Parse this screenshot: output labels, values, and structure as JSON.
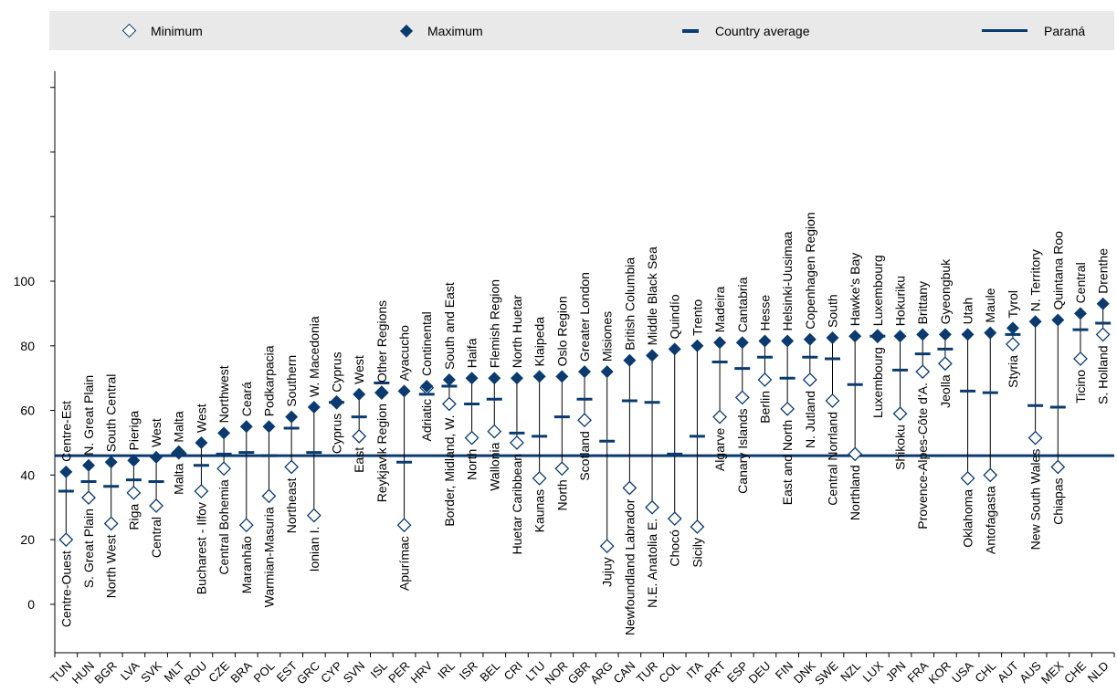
{
  "legend": {
    "min_label": "Minimum",
    "max_label": "Maximum",
    "avg_label": "Country average",
    "ref_label": "Paraná"
  },
  "colors": {
    "series": "#0b3b6e",
    "legend_bg": "#e9e9e9"
  },
  "chart_data": {
    "type": "scatter",
    "ylim": [
      -15,
      165
    ],
    "ticks": [
      0,
      20,
      40,
      60,
      80,
      100
    ],
    "reference": {
      "name": "Paraná",
      "value": 46
    },
    "countries": [
      {
        "code": "TUN",
        "min": 20,
        "max": 41,
        "avg": 35,
        "minName": "Centre-Ouest",
        "maxName": "Centre-Est"
      },
      {
        "code": "HUN",
        "min": 33,
        "max": 43,
        "avg": 38,
        "minName": "S. Great Plain",
        "maxName": "N. Great Plain"
      },
      {
        "code": "BGR",
        "min": 25,
        "max": 44,
        "avg": 36.5,
        "minName": "North West",
        "maxName": "South Central"
      },
      {
        "code": "LVA",
        "min": 34.5,
        "max": 44.5,
        "avg": 38.5,
        "minName": "Riga",
        "maxName": "Pieriga"
      },
      {
        "code": "SVK",
        "min": 30.5,
        "max": 45.5,
        "avg": 38,
        "minName": "Central",
        "maxName": "West"
      },
      {
        "code": "MLT",
        "min": 47,
        "max": 47,
        "avg": 46.5,
        "minName": "Malta",
        "maxName": "Malta"
      },
      {
        "code": "ROU",
        "min": 35,
        "max": 50,
        "avg": 43,
        "minName": "Bucharest - Ilfov",
        "maxName": "West"
      },
      {
        "code": "CZE",
        "min": 42,
        "max": 53,
        "avg": 46.5,
        "minName": "Central Bohemia",
        "maxName": "Northwest"
      },
      {
        "code": "BRA",
        "min": 24.5,
        "max": 55,
        "avg": 47,
        "minName": "Maranhão",
        "maxName": "Ceará"
      },
      {
        "code": "POL",
        "min": 33.5,
        "max": 55,
        "avg": 46,
        "minName": "Warmian-Masuria",
        "maxName": "Podkarpacia"
      },
      {
        "code": "EST",
        "min": 42.5,
        "max": 58,
        "avg": 54.5,
        "minName": "Northeast",
        "maxName": "Southern"
      },
      {
        "code": "GRC",
        "min": 27.5,
        "max": 61,
        "avg": 47,
        "minName": "Ionian I.",
        "maxName": "W. Macedonia"
      },
      {
        "code": "CYP",
        "min": 62.5,
        "max": 62.5,
        "avg": 62.5,
        "minName": "Cyprus",
        "maxName": "Cyprus"
      },
      {
        "code": "SVN",
        "min": 52,
        "max": 65,
        "avg": 58,
        "minName": "East",
        "maxName": "West"
      },
      {
        "code": "ISL",
        "min": 65.5,
        "max": 65.5,
        "avg": 68.5,
        "minName": "Reykjavik Region",
        "maxName": "Other Regions"
      },
      {
        "code": "PER",
        "min": 24.5,
        "max": 66,
        "avg": 44,
        "minName": "Apurímac",
        "maxName": "Ayacucho"
      },
      {
        "code": "HRV",
        "min": 67,
        "max": 67.5,
        "avg": 65,
        "minName": "Adriatic",
        "maxName": "Continental"
      },
      {
        "code": "IRL",
        "min": 62,
        "max": 69.5,
        "avg": 67.5,
        "minName": "Border, Midland, W.",
        "maxName": "South and East"
      },
      {
        "code": "ISR",
        "min": 51.5,
        "max": 70,
        "avg": 62,
        "minName": "North",
        "maxName": "Haifa"
      },
      {
        "code": "BEL",
        "min": 53.5,
        "max": 70,
        "avg": 63.5,
        "minName": "Wallonia",
        "maxName": "Flemish Region"
      },
      {
        "code": "CRI",
        "min": 50,
        "max": 70,
        "avg": 53,
        "minName": "Huetar Caribbean",
        "maxName": "North Huetar"
      },
      {
        "code": "LTU",
        "min": 39,
        "max": 70.5,
        "avg": 52,
        "minName": "Kaunas",
        "maxName": "Klaipeda"
      },
      {
        "code": "NOR",
        "min": 42,
        "max": 70.5,
        "avg": 58,
        "minName": "North",
        "maxName": "Oslo Region"
      },
      {
        "code": "GBR",
        "min": 57,
        "max": 72,
        "avg": 63.5,
        "minName": "Scotland",
        "maxName": "Greater London"
      },
      {
        "code": "ARG",
        "min": 18,
        "max": 72,
        "avg": 50.5,
        "minName": "Jujuy",
        "maxName": "Misiones"
      },
      {
        "code": "CAN",
        "min": 36,
        "max": 75.5,
        "avg": 63,
        "minName": "Newfoundland Labrador",
        "maxName": "British Columbia"
      },
      {
        "code": "TUR",
        "min": 30,
        "max": 77,
        "avg": 62.5,
        "minName": "N.E. Anatolia E.",
        "maxName": "Middle Black Sea"
      },
      {
        "code": "COL",
        "min": 26.5,
        "max": 79,
        "avg": 46.5,
        "minName": "Chocó",
        "maxName": "Quindío"
      },
      {
        "code": "ITA",
        "min": 24,
        "max": 80,
        "avg": 52,
        "minName": "Sicily",
        "maxName": "Trento"
      },
      {
        "code": "PRT",
        "min": 58,
        "max": 81,
        "avg": 75,
        "minName": "Algarve",
        "maxName": "Madeira"
      },
      {
        "code": "ESP",
        "min": 64,
        "max": 81,
        "avg": 73,
        "minName": "Canary Islands",
        "maxName": "Cantabria"
      },
      {
        "code": "DEU",
        "min": 69.5,
        "max": 81.5,
        "avg": 76.5,
        "minName": "Berlin",
        "maxName": "Hesse"
      },
      {
        "code": "FIN",
        "min": 60.5,
        "max": 81.5,
        "avg": 70,
        "minName": "East and North",
        "maxName": "Helsinki-Uusimaa"
      },
      {
        "code": "DNK",
        "min": 69.5,
        "max": 82,
        "avg": 76.5,
        "minName": "N. Jutland",
        "maxName": "Copenhagen Region"
      },
      {
        "code": "SWE",
        "min": 63,
        "max": 82.5,
        "avg": 76,
        "minName": "Central Norrland",
        "maxName": "South"
      },
      {
        "code": "NZL",
        "min": 46.5,
        "max": 83,
        "avg": 68,
        "minName": "Northland",
        "maxName": "Hawke's Bay"
      },
      {
        "code": "LUX",
        "min": 83,
        "max": 83,
        "avg": 83,
        "minName": "Luxembourg",
        "maxName": "Luxembourg"
      },
      {
        "code": "JPN",
        "min": 59,
        "max": 83,
        "avg": 72.5,
        "minName": "Shikoku",
        "maxName": "Hokuriku"
      },
      {
        "code": "FRA",
        "min": 72,
        "max": 83.5,
        "avg": 77.5,
        "minName": "Provence-Alpes-Côte d'A.",
        "maxName": "Brittany"
      },
      {
        "code": "KOR",
        "min": 74.5,
        "max": 83.5,
        "avg": 79,
        "minName": "Jeolla",
        "maxName": "Gyeongbuk"
      },
      {
        "code": "USA",
        "min": 39,
        "max": 83.5,
        "avg": 66,
        "minName": "Oklahoma",
        "maxName": "Utah"
      },
      {
        "code": "CHL",
        "min": 40,
        "max": 84,
        "avg": 65.5,
        "minName": "Antofagasta",
        "maxName": "Maule"
      },
      {
        "code": "AUT",
        "min": 80.5,
        "max": 85.5,
        "avg": 83.5,
        "minName": "Styria",
        "maxName": "Tyrol"
      },
      {
        "code": "AUS",
        "min": 51.5,
        "max": 87.5,
        "avg": 61.5,
        "minName": "New South Wales",
        "maxName": "N. Territory"
      },
      {
        "code": "MEX",
        "min": 42.5,
        "max": 88,
        "avg": 61,
        "minName": "Chiapas",
        "maxName": "Quintana Roo"
      },
      {
        "code": "CHE",
        "min": 76,
        "max": 90,
        "avg": 85,
        "minName": "Ticino",
        "maxName": "Central"
      },
      {
        "code": "NLD",
        "min": 83.5,
        "max": 93,
        "avg": 87,
        "minName": "S. Holland",
        "maxName": "Drenthe"
      }
    ]
  }
}
